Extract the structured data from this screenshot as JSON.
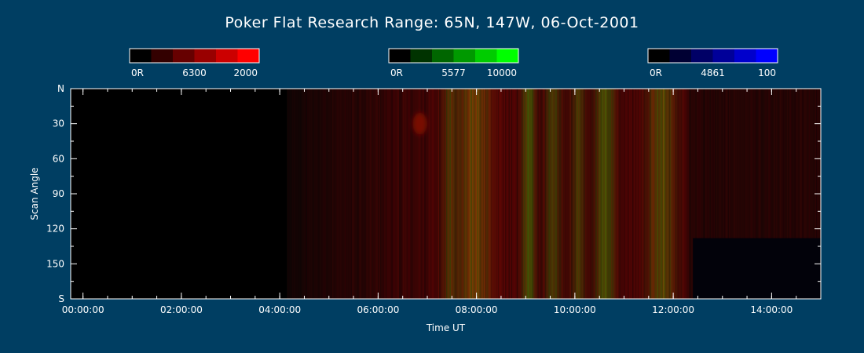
{
  "page": {
    "background": "#003e62"
  },
  "chart_data": {
    "type": "heatmap",
    "title": "Poker Flat Research Range: 65N, 147W, 06-Oct-2001",
    "xlabel": "Time UT",
    "ylabel": "Scan Angle",
    "x_unit": "hours UT",
    "xlim": [
      -0.25,
      15.0
    ],
    "x_ticks": [
      0,
      2,
      4,
      6,
      8,
      10,
      12,
      14
    ],
    "x_tick_labels": [
      "00:00:00",
      "02:00:00",
      "04:00:00",
      "06:00:00",
      "08:00:00",
      "10:00:00",
      "12:00:00",
      "14:00:00"
    ],
    "ylim": [
      0,
      180
    ],
    "y_ticks": [
      0,
      30,
      60,
      90,
      120,
      150,
      180
    ],
    "y_tick_labels": [
      "N",
      "30",
      "60",
      "90",
      "120",
      "150",
      "S"
    ],
    "colorbars": [
      {
        "name": "6300",
        "min_label": "0R",
        "max_label": "2000",
        "color": "#ff0000",
        "colors": [
          "#000000",
          "#330000",
          "#660000",
          "#990000",
          "#cc0000",
          "#ff0000"
        ]
      },
      {
        "name": "5577",
        "min_label": "0R",
        "max_label": "10000",
        "color": "#00ff00",
        "colors": [
          "#000000",
          "#003300",
          "#006600",
          "#009900",
          "#00cc00",
          "#00ff00"
        ]
      },
      {
        "name": "4861",
        "min_label": "0R",
        "max_label": "100",
        "color": "#0000ff",
        "colors": [
          "#000000",
          "#000033",
          "#000066",
          "#000099",
          "#0000cc",
          "#0000ff"
        ]
      }
    ],
    "data_start_hour": 4.15,
    "data_end_hour": 15.0,
    "no_data_region": {
      "x_start": 12.4,
      "x_end": 15.0,
      "y_start": 128,
      "y_end": 180
    },
    "features": [
      {
        "hour": 6.85,
        "angle": 30,
        "channel": "6300",
        "intensity": 0.8,
        "width": 0.15
      },
      {
        "hour": 7.45,
        "channel": "5577",
        "intensity": 0.5,
        "width": 0.15
      },
      {
        "hour": 7.95,
        "channel": "5577",
        "intensity": 0.7,
        "width": 0.3
      },
      {
        "hour": 9.05,
        "channel": "5577",
        "intensity": 0.9,
        "width": 0.12
      },
      {
        "hour": 9.55,
        "channel": "5577",
        "intensity": 0.6,
        "width": 0.15
      },
      {
        "hour": 10.05,
        "channel": "5577",
        "intensity": 0.55,
        "width": 0.12
      },
      {
        "hour": 10.6,
        "channel": "5577",
        "intensity": 0.85,
        "width": 0.18
      },
      {
        "hour": 11.75,
        "channel": "5577",
        "intensity": 0.75,
        "width": 0.25
      }
    ]
  }
}
